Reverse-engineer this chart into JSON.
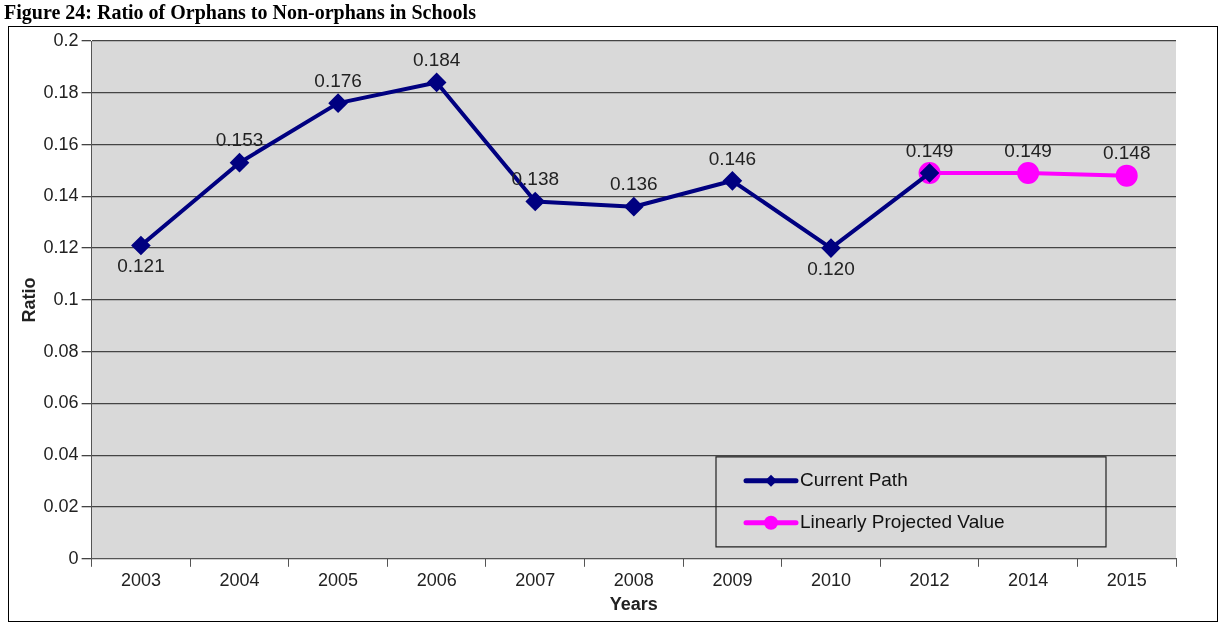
{
  "chart_data": {
    "type": "line",
    "title": "Figure 24: Ratio of Orphans to Non-orphans in Schools",
    "xlabel": "Years",
    "ylabel": "Ratio",
    "categories": [
      "2003",
      "2004",
      "2005",
      "2006",
      "2007",
      "2008",
      "2009",
      "2010",
      "2012",
      "2014",
      "2015"
    ],
    "series": [
      {
        "name": "Current Path",
        "color": "#000080",
        "marker": "diamond",
        "values": [
          0.121,
          0.153,
          0.176,
          0.184,
          0.138,
          0.136,
          0.146,
          0.12,
          0.149,
          null,
          null
        ],
        "value_labels": [
          "0.121",
          "0.153",
          "0.176",
          "0.184",
          "0.138",
          "0.136",
          "0.146",
          "0.120",
          "0.149",
          null,
          null
        ]
      },
      {
        "name": "Linearly Projected Value",
        "color": "#ff00ff",
        "marker": "circle",
        "values": [
          null,
          null,
          null,
          null,
          null,
          null,
          null,
          null,
          0.149,
          0.149,
          0.148
        ],
        "value_labels": [
          null,
          null,
          null,
          null,
          null,
          null,
          null,
          null,
          null,
          "0.149",
          "0.148"
        ]
      }
    ],
    "ylim": [
      0,
      0.2
    ],
    "yticks": [
      0,
      0.02,
      0.04,
      0.06,
      0.08,
      0.1,
      0.12,
      0.14,
      0.16,
      0.18,
      0.2
    ],
    "grid": "y",
    "legend": "bottom right"
  }
}
